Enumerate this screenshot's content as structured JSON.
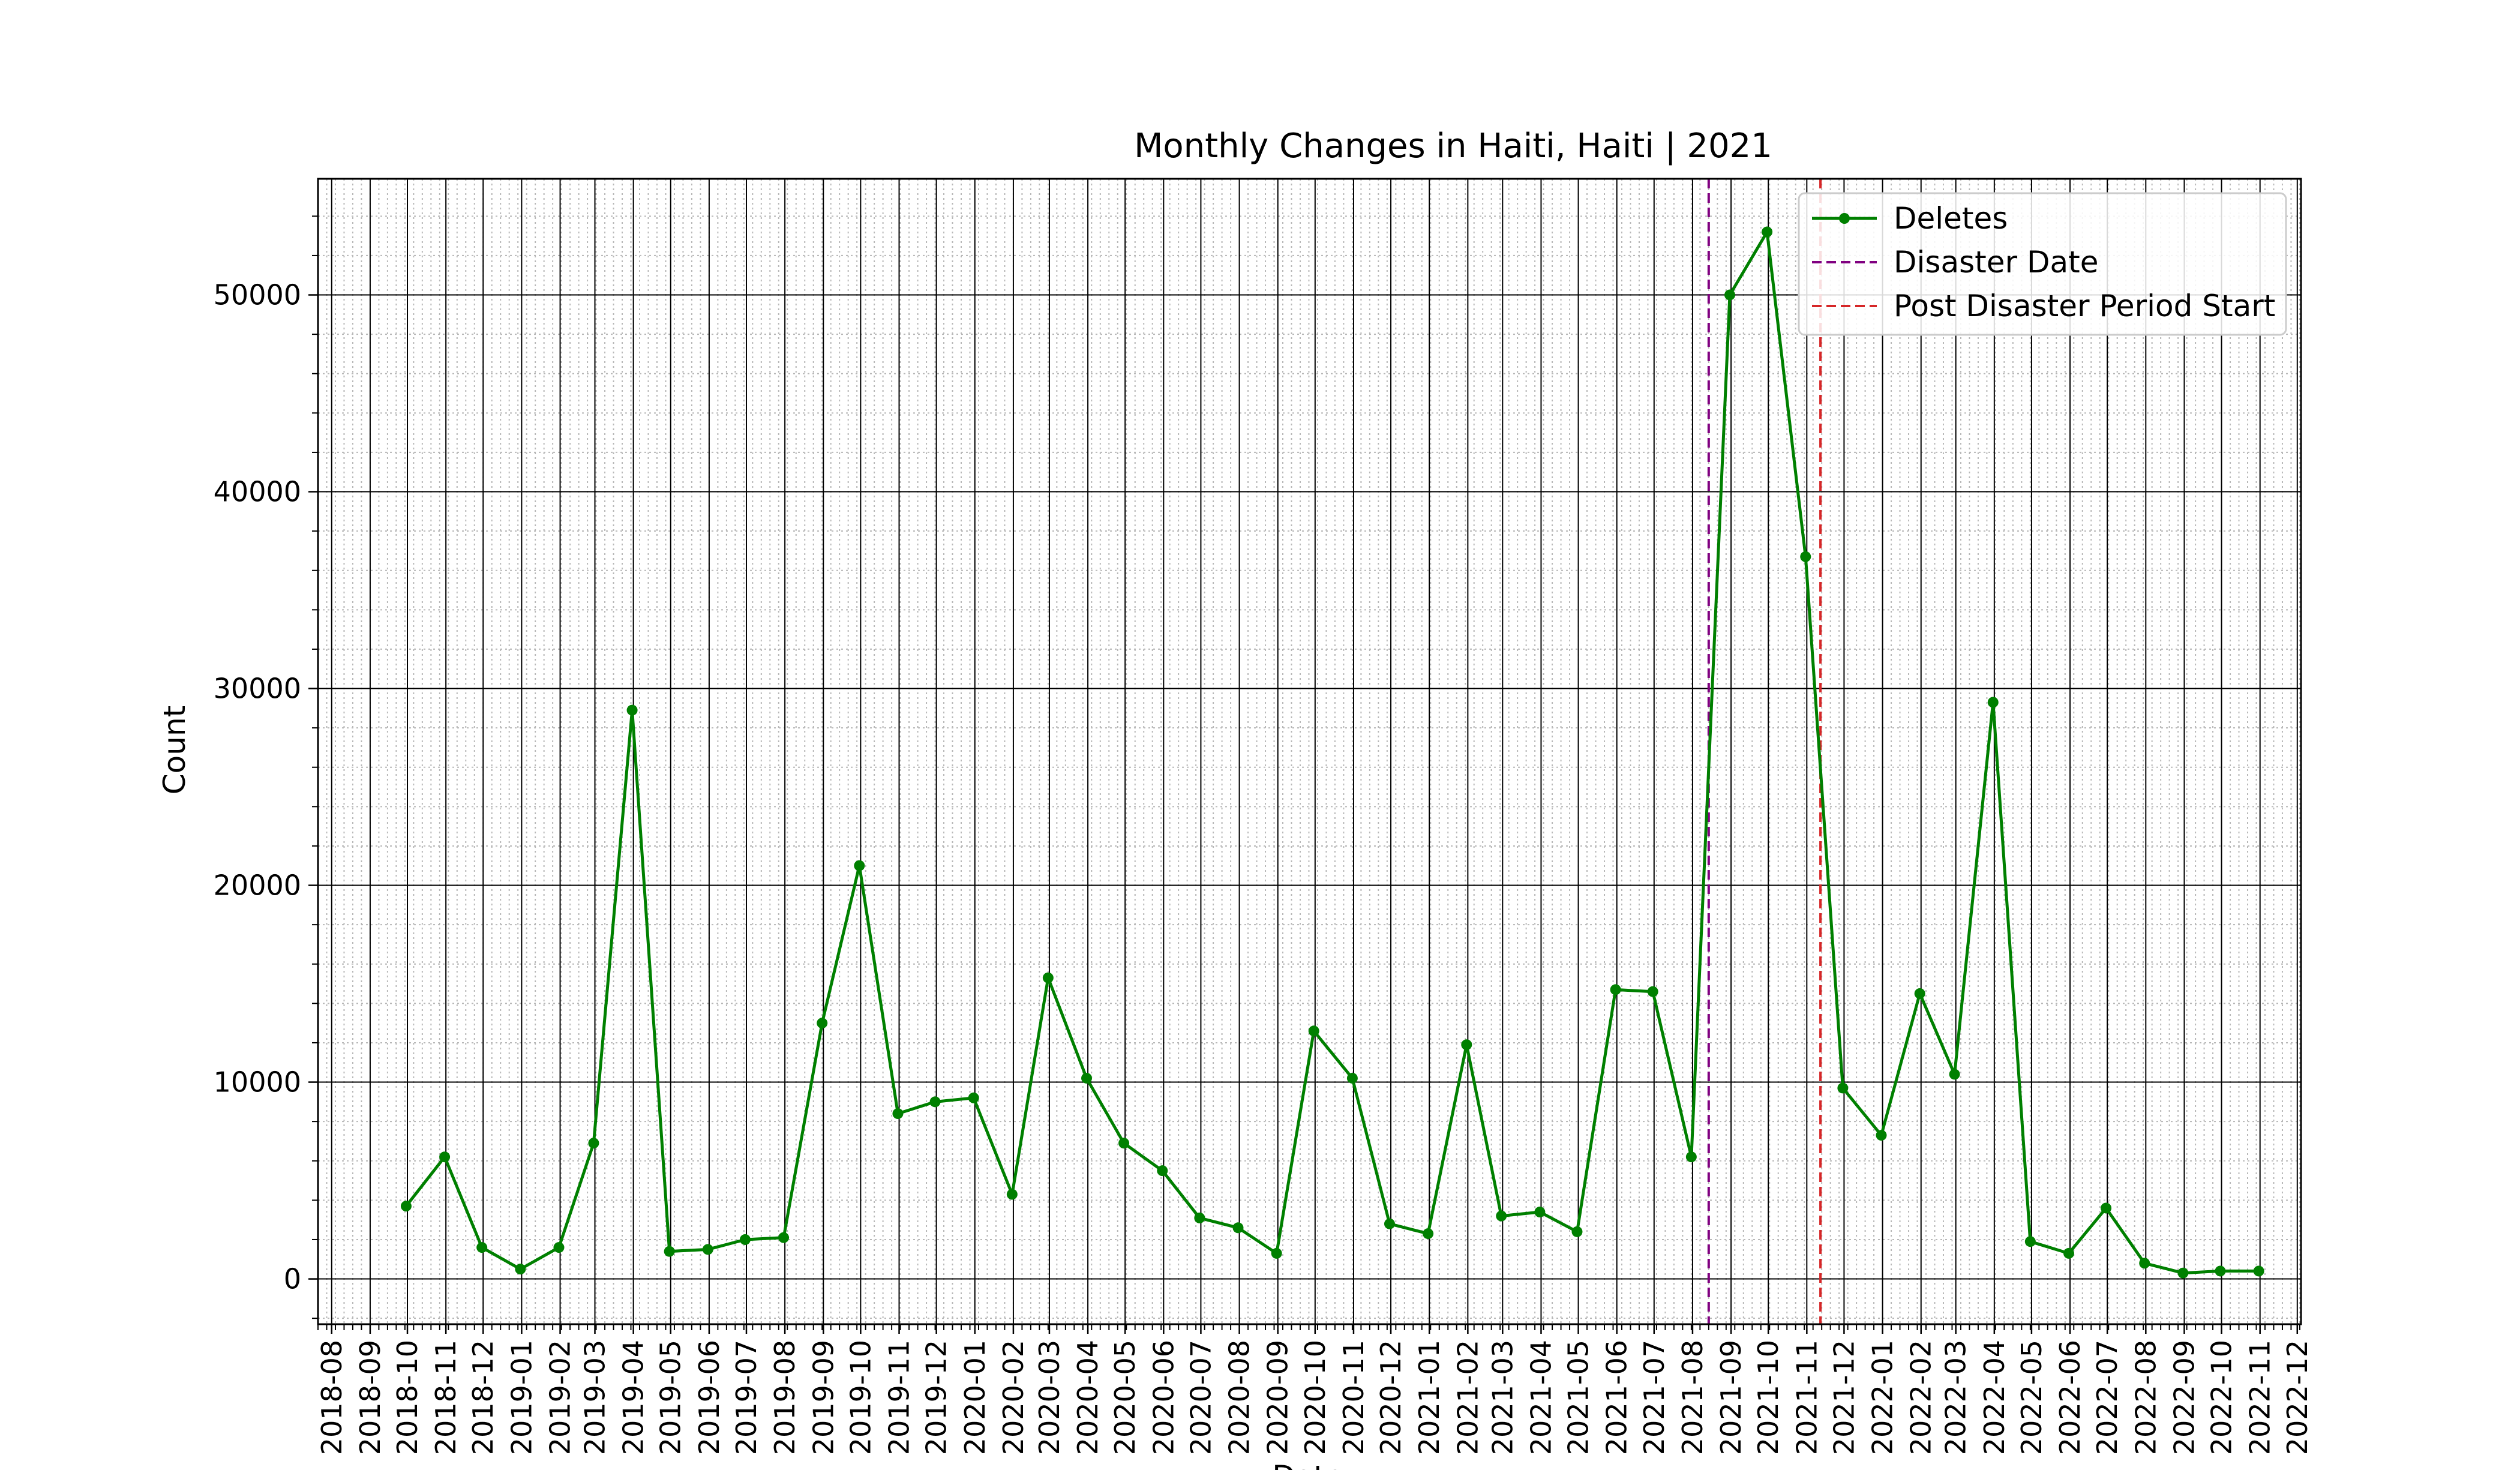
{
  "chart_data": {
    "type": "line",
    "title": "Monthly Changes in Haiti, Haiti | 2021",
    "xlabel": "Date",
    "ylabel": "Count",
    "x_tick_labels": [
      "2018-08",
      "2018-09",
      "2018-10",
      "2018-11",
      "2018-12",
      "2019-01",
      "2019-02",
      "2019-03",
      "2019-04",
      "2019-05",
      "2019-06",
      "2019-07",
      "2019-08",
      "2019-09",
      "2019-10",
      "2019-11",
      "2019-12",
      "2020-01",
      "2020-02",
      "2020-03",
      "2020-04",
      "2020-05",
      "2020-06",
      "2020-07",
      "2020-08",
      "2020-09",
      "2020-10",
      "2020-11",
      "2020-12",
      "2021-01",
      "2021-02",
      "2021-03",
      "2021-04",
      "2021-05",
      "2021-06",
      "2021-07",
      "2021-08",
      "2021-09",
      "2021-10",
      "2021-11",
      "2021-12",
      "2022-01",
      "2022-02",
      "2022-03",
      "2022-04",
      "2022-05",
      "2022-06",
      "2022-07",
      "2022-08",
      "2022-09",
      "2022-10",
      "2022-11",
      "2022-12"
    ],
    "y_ticks": [
      0,
      10000,
      20000,
      30000,
      40000,
      50000
    ],
    "ylim": [
      -2300,
      55900
    ],
    "xlim": [
      "2018-07-21",
      "2022-12-04"
    ],
    "grid": true,
    "legend_position": "upper-right",
    "series": [
      {
        "name": "Deletes",
        "color": "#008000",
        "style": "solid-line-with-dots",
        "points": [
          [
            "2018-09-30",
            3700
          ],
          [
            "2018-10-31",
            6200
          ],
          [
            "2018-11-30",
            1600
          ],
          [
            "2018-12-31",
            500
          ],
          [
            "2019-01-31",
            1600
          ],
          [
            "2019-02-28",
            6900
          ],
          [
            "2019-03-31",
            28900
          ],
          [
            "2019-04-30",
            1400
          ],
          [
            "2019-05-31",
            1500
          ],
          [
            "2019-06-30",
            2000
          ],
          [
            "2019-07-31",
            2100
          ],
          [
            "2019-08-31",
            13000
          ],
          [
            "2019-09-30",
            21000
          ],
          [
            "2019-10-31",
            8400
          ],
          [
            "2019-11-30",
            9000
          ],
          [
            "2019-12-31",
            9200
          ],
          [
            "2020-01-31",
            4300
          ],
          [
            "2020-02-29",
            15300
          ],
          [
            "2020-03-31",
            10200
          ],
          [
            "2020-04-30",
            6900
          ],
          [
            "2020-05-31",
            5500
          ],
          [
            "2020-06-30",
            3100
          ],
          [
            "2020-07-31",
            2600
          ],
          [
            "2020-08-31",
            1300
          ],
          [
            "2020-09-30",
            12600
          ],
          [
            "2020-10-31",
            10200
          ],
          [
            "2020-11-30",
            2800
          ],
          [
            "2020-12-31",
            2300
          ],
          [
            "2021-01-31",
            11900
          ],
          [
            "2021-02-28",
            3200
          ],
          [
            "2021-03-31",
            3400
          ],
          [
            "2021-04-30",
            2400
          ],
          [
            "2021-05-31",
            14700
          ],
          [
            "2021-06-30",
            14600
          ],
          [
            "2021-07-31",
            6200
          ],
          [
            "2021-08-31",
            50000
          ],
          [
            "2021-09-30",
            53200
          ],
          [
            "2021-10-31",
            36700
          ],
          [
            "2021-11-30",
            9700
          ],
          [
            "2021-12-31",
            7300
          ],
          [
            "2022-01-31",
            14500
          ],
          [
            "2022-02-28",
            10400
          ],
          [
            "2022-03-31",
            29300
          ],
          [
            "2022-04-30",
            1900
          ],
          [
            "2022-05-31",
            1300
          ],
          [
            "2022-06-30",
            3600
          ],
          [
            "2022-07-31",
            800
          ],
          [
            "2022-08-31",
            300
          ],
          [
            "2022-09-30",
            400
          ],
          [
            "2022-10-31",
            400
          ]
        ]
      }
    ],
    "vlines": [
      {
        "name": "Disaster Date",
        "date": "2021-08-14",
        "color": "#800080"
      },
      {
        "name": "Post Disaster Period Start",
        "date": "2021-11-12",
        "color": "#d62728"
      }
    ]
  }
}
